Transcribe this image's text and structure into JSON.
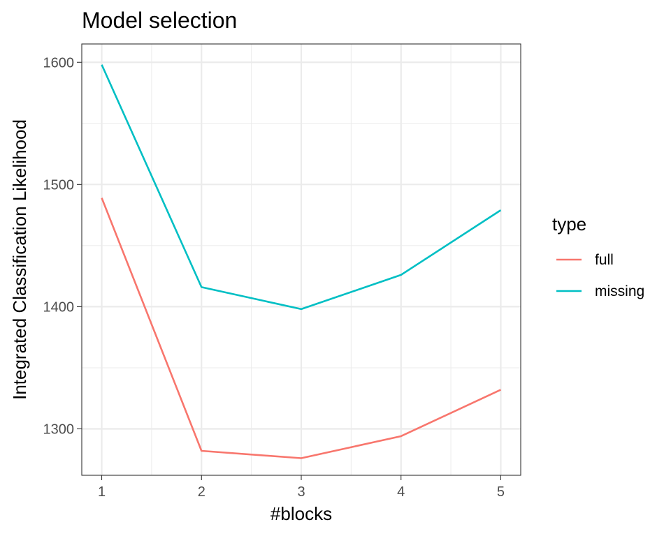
{
  "chart_data": {
    "type": "line",
    "title": "Model selection",
    "xlabel": "#blocks",
    "ylabel": "Integrated Classification Likelihood",
    "x": [
      1,
      2,
      3,
      4,
      5
    ],
    "x_ticks": [
      1,
      2,
      3,
      4,
      5
    ],
    "xlim": [
      0.8,
      5.2
    ],
    "y_ticks": [
      1300,
      1400,
      1500,
      1600
    ],
    "ylim": [
      1262,
      1615
    ],
    "grid": true,
    "legend": {
      "title": "type",
      "position": "right"
    },
    "series": [
      {
        "name": "full",
        "color": "#F8766D",
        "values": [
          1489,
          1282,
          1276,
          1294,
          1332
        ]
      },
      {
        "name": "missing",
        "color": "#00BFC4",
        "values": [
          1598,
          1416,
          1398,
          1426,
          1479
        ]
      }
    ]
  }
}
